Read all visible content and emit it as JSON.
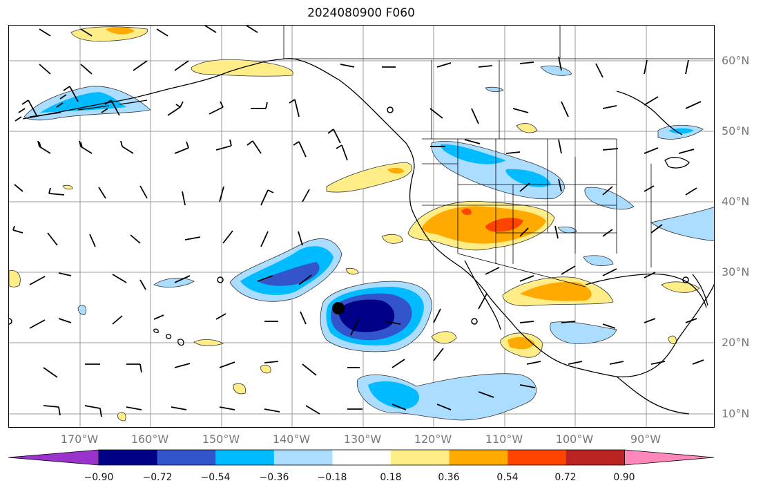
{
  "title": "2024080900 F060",
  "map": {
    "lat_labels": [
      "60°N",
      "50°N",
      "40°N",
      "30°N",
      "20°N",
      "10°N"
    ],
    "lon_labels": [
      "170°W",
      "160°W",
      "150°W",
      "140°W",
      "130°W",
      "120°W",
      "110°W",
      "100°W",
      "90°W"
    ],
    "storm_marker": "storm-center"
  },
  "colorbar": {
    "colors": [
      "#9933cc",
      "#000088",
      "#3355cc",
      "#00bbff",
      "#aaddff",
      "#ffffff",
      "#ffee88",
      "#ffaa00",
      "#ff4400",
      "#bb2222",
      "#ff88bb"
    ],
    "tick_labels": [
      "−0.90",
      "−0.72",
      "−0.54",
      "−0.36",
      "−0.18",
      "0.18",
      "0.36",
      "0.54",
      "0.72",
      "0.90"
    ]
  }
}
